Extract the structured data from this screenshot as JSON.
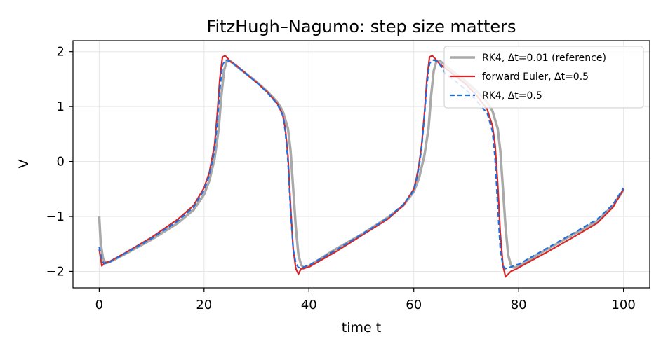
{
  "chart_data": {
    "type": "line",
    "title": "FitzHugh–Nagumo: step size matters",
    "xlabel": "time  t",
    "ylabel": "V",
    "xlim": [
      -5,
      105
    ],
    "ylim": [
      -2.3,
      2.2
    ],
    "xticks": [
      0,
      20,
      40,
      60,
      80,
      100
    ],
    "yticks": [
      -2,
      -1,
      0,
      1,
      2
    ],
    "xtick_labels": [
      "0",
      "20",
      "40",
      "60",
      "80",
      "100"
    ],
    "ytick_labels": [
      "−2",
      "−1",
      "0",
      "1",
      "2"
    ],
    "grid": true,
    "legend_position": "top-right",
    "series": [
      {
        "name": "RK4, Δt=0.01 (reference)",
        "color": "#a9a9a9",
        "style": "solid",
        "x": [
          0,
          0.3,
          0.7,
          1.2,
          2,
          5,
          10,
          15,
          18,
          20,
          21,
          22,
          22.8,
          23.3,
          23.8,
          24.3,
          25,
          26,
          28,
          30,
          32,
          34,
          35,
          36,
          36.5,
          37,
          37.5,
          38,
          38.5,
          39,
          39.5,
          40,
          45,
          50,
          55,
          58,
          60,
          61,
          62,
          62.8,
          63.3,
          63.8,
          64.3,
          65,
          66,
          68,
          70,
          72,
          74,
          75,
          76,
          76.5,
          77,
          77.5,
          78,
          78.5,
          79,
          79.5,
          80,
          85,
          90,
          95,
          98,
          100
        ],
        "y": [
          -1.0,
          -1.5,
          -1.75,
          -1.85,
          -1.83,
          -1.68,
          -1.42,
          -1.12,
          -0.88,
          -0.6,
          -0.35,
          0.05,
          0.6,
          1.2,
          1.65,
          1.82,
          1.83,
          1.75,
          1.6,
          1.45,
          1.28,
          1.08,
          0.92,
          0.6,
          0.2,
          -0.5,
          -1.2,
          -1.7,
          -1.88,
          -1.93,
          -1.92,
          -1.9,
          -1.6,
          -1.33,
          -1.02,
          -0.8,
          -0.55,
          -0.3,
          0.1,
          0.6,
          1.2,
          1.65,
          1.82,
          1.83,
          1.75,
          1.6,
          1.45,
          1.28,
          1.08,
          0.92,
          0.6,
          0.2,
          -0.5,
          -1.2,
          -1.7,
          -1.88,
          -1.93,
          -1.92,
          -1.9,
          -1.62,
          -1.35,
          -1.08,
          -0.8,
          -0.52
        ]
      },
      {
        "name": "forward Euler, Δt=0.5",
        "color": "#d62728",
        "style": "solid",
        "x": [
          0,
          0.5,
          1,
          1.5,
          2,
          5,
          10,
          15,
          18,
          20,
          21,
          22,
          22.5,
          23,
          23.5,
          24,
          24.5,
          25,
          26,
          28,
          30,
          32,
          34,
          35,
          35.5,
          36,
          36.5,
          37,
          37.5,
          38,
          38.5,
          39,
          39.5,
          40,
          45,
          50,
          55,
          58,
          60,
          60.5,
          61,
          61.5,
          62,
          62.5,
          63,
          63.5,
          64,
          64.5,
          65,
          66,
          68,
          70,
          72,
          74,
          75,
          75.5,
          76,
          76.5,
          77,
          77.5,
          78,
          78.5,
          79,
          79.5,
          80,
          85,
          90,
          95,
          98,
          100
        ],
        "y": [
          -1.6,
          -1.9,
          -1.85,
          -1.83,
          -1.82,
          -1.66,
          -1.38,
          -1.05,
          -0.8,
          -0.48,
          -0.2,
          0.3,
          0.85,
          1.5,
          1.9,
          1.93,
          1.88,
          1.82,
          1.76,
          1.6,
          1.44,
          1.27,
          1.05,
          0.85,
          0.6,
          0.1,
          -0.8,
          -1.6,
          -1.95,
          -2.05,
          -1.95,
          -1.95,
          -1.93,
          -1.92,
          -1.65,
          -1.35,
          -1.05,
          -0.8,
          -0.5,
          -0.3,
          -0.05,
          0.3,
          0.85,
          1.5,
          1.9,
          1.93,
          1.88,
          1.82,
          1.77,
          1.7,
          1.55,
          1.4,
          1.2,
          0.95,
          0.65,
          0.3,
          -0.4,
          -1.3,
          -1.9,
          -2.1,
          -2.05,
          -2.0,
          -1.98,
          -1.96,
          -1.93,
          -1.67,
          -1.4,
          -1.12,
          -0.83,
          -0.5
        ]
      },
      {
        "name": "RK4, Δt=0.5",
        "color": "#1f6fe0",
        "style": "dashed",
        "x": [
          0,
          0.5,
          1,
          1.5,
          2,
          5,
          10,
          15,
          18,
          20,
          21,
          22,
          22.5,
          23,
          23.5,
          24,
          24.5,
          25,
          26,
          28,
          30,
          32,
          34,
          35,
          35.5,
          36,
          36.5,
          37,
          37.5,
          38,
          38.5,
          39,
          39.5,
          40,
          45,
          50,
          55,
          58,
          60,
          60.5,
          61,
          61.5,
          62,
          62.5,
          63,
          63.5,
          64,
          64.5,
          65,
          66,
          68,
          70,
          72,
          74,
          75,
          75.5,
          76,
          76.5,
          77,
          77.5,
          78,
          78.5,
          79,
          79.5,
          80,
          85,
          90,
          95,
          98,
          100
        ],
        "y": [
          -1.55,
          -1.8,
          -1.86,
          -1.84,
          -1.83,
          -1.67,
          -1.4,
          -1.08,
          -0.83,
          -0.52,
          -0.25,
          0.2,
          0.7,
          1.3,
          1.75,
          1.85,
          1.84,
          1.82,
          1.75,
          1.6,
          1.44,
          1.26,
          1.04,
          0.84,
          0.55,
          0.0,
          -0.9,
          -1.6,
          -1.85,
          -1.93,
          -1.93,
          -1.92,
          -1.9,
          -1.89,
          -1.62,
          -1.33,
          -1.03,
          -0.78,
          -0.53,
          -0.33,
          -0.1,
          0.25,
          0.8,
          1.4,
          1.78,
          1.85,
          1.84,
          1.82,
          1.76,
          1.6,
          1.46,
          1.3,
          1.1,
          0.88,
          0.55,
          0.05,
          -0.8,
          -1.6,
          -1.9,
          -1.95,
          -1.93,
          -1.92,
          -1.9,
          -1.88,
          -1.87,
          -1.6,
          -1.33,
          -1.05,
          -0.78,
          -0.48
        ]
      }
    ]
  }
}
